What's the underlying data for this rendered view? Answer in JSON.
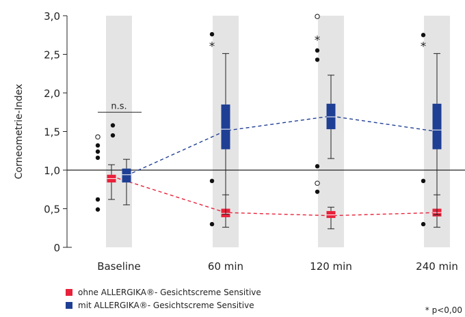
{
  "chart_data": {
    "type": "box",
    "ylabel": "Corneometrie-Index",
    "ylim": [
      0,
      3.0
    ],
    "yticks": [
      0,
      0.5,
      1.0,
      1.5,
      2.0,
      2.5,
      3.0
    ],
    "ytick_labels": [
      "0",
      "0,5",
      "1,0",
      "1,5",
      "2,0",
      "2,5",
      "3,0"
    ],
    "reference_line": 1.0,
    "categories": [
      "Baseline",
      "60 min",
      "120 min",
      "240 min"
    ],
    "colors": {
      "ohne": "#e8213a",
      "mit": "#1f3f94",
      "band": "#e4e4e4"
    },
    "series": [
      {
        "name": "ohne ALLERGIKA®- Gesichtscreme Sensitive",
        "boxes": [
          {
            "whisker_low": 0.62,
            "q1": 0.84,
            "median": 0.89,
            "q3": 0.94,
            "whisker_high": 1.07,
            "outliers": [
              1.16,
              1.24,
              1.32,
              0.62,
              0.49
            ],
            "extreme": [
              1.43
            ]
          },
          {
            "whisker_low": 0.26,
            "q1": 0.39,
            "median": 0.44,
            "q3": 0.5,
            "whisker_high": 0.68,
            "outliers": [
              0.86
            ],
            "extreme": []
          },
          {
            "whisker_low": 0.24,
            "q1": 0.38,
            "median": 0.42,
            "q3": 0.47,
            "whisker_high": 0.52,
            "outliers": [
              0.72
            ],
            "extreme": [
              0.83
            ]
          },
          {
            "whisker_low": 0.26,
            "q1": 0.4,
            "median": 0.45,
            "q3": 0.5,
            "whisker_high": 0.68,
            "outliers": [
              0.86
            ],
            "extreme": []
          }
        ],
        "trend": [
          0.92,
          0.45,
          0.41,
          0.45
        ]
      },
      {
        "name": "mit ALLERGIKA®- Gesichtscreme Sensitive",
        "boxes": [
          {
            "whisker_low": 0.55,
            "q1": 0.84,
            "median": 0.94,
            "q3": 1.02,
            "whisker_high": 1.14,
            "outliers": [
              1.45,
              1.58
            ],
            "extreme": []
          },
          {
            "whisker_low": 0.43,
            "q1": 1.27,
            "median": 1.53,
            "q3": 1.85,
            "whisker_high": 2.51,
            "outliers": [
              2.76,
              0.3
            ],
            "extreme": []
          },
          {
            "whisker_low": 1.15,
            "q1": 1.53,
            "median": 1.69,
            "q3": 1.86,
            "whisker_high": 2.23,
            "outliers": [
              2.55,
              2.43,
              1.05
            ],
            "extreme": [
              2.99
            ]
          },
          {
            "whisker_low": 0.42,
            "q1": 1.27,
            "median": 1.52,
            "q3": 1.86,
            "whisker_high": 2.51,
            "outliers": [
              2.75,
              0.3
            ],
            "extreme": []
          }
        ],
        "trend": [
          0.93,
          1.51,
          1.7,
          1.5
        ]
      }
    ],
    "annotations": {
      "baseline_label": "n.s.",
      "significance_marker": "*",
      "footnote": "* p<0,00"
    },
    "legend_position": "bottom-left"
  }
}
